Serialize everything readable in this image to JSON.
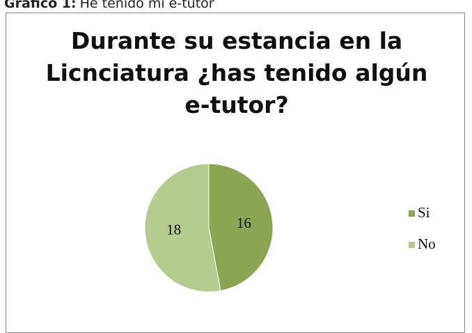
{
  "caption_label": "Gráfico 1:",
  "caption_text": "He tenido mi e-tutor",
  "chart_data": {
    "type": "pie",
    "title": "Durante su estancia en la Licnciatura ¿has tenido algún e-tutor?",
    "categories": [
      "Si",
      "No"
    ],
    "values": [
      16,
      18
    ],
    "colors": [
      "#8ba552",
      "#b6cc8f"
    ],
    "legend": "right"
  }
}
